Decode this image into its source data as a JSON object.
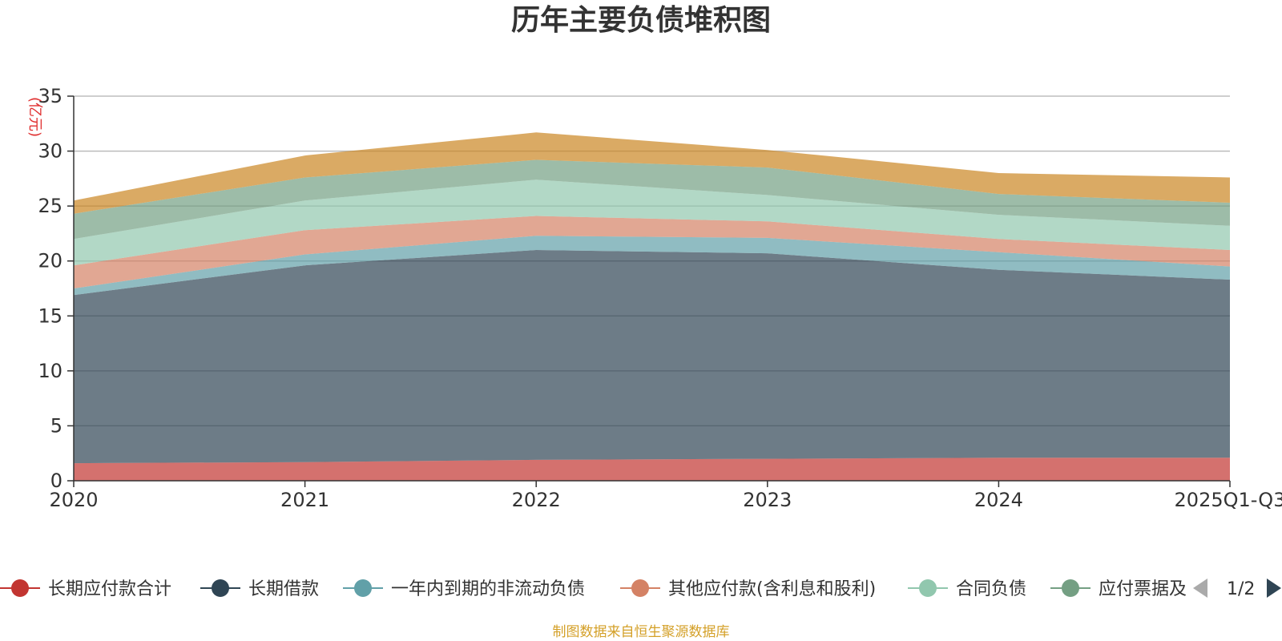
{
  "chart_data": {
    "type": "area",
    "stacked": true,
    "title": "历年主要负债堆积图",
    "ylabel": "(亿元)",
    "xlabel": "",
    "categories": [
      "2020",
      "2021",
      "2022",
      "2023",
      "2024",
      "2025Q1-Q3"
    ],
    "ylim": [
      0,
      35
    ],
    "yticks": [
      0,
      5,
      10,
      15,
      20,
      25,
      30,
      35
    ],
    "grid": true,
    "series": [
      {
        "name": "长期应付款合计",
        "color": "#c23531",
        "values": [
          1.6,
          1.7,
          1.9,
          2.0,
          2.1,
          2.1
        ]
      },
      {
        "name": "长期借款",
        "color": "#2f4554",
        "values": [
          15.3,
          17.9,
          19.1,
          18.7,
          17.1,
          16.2
        ]
      },
      {
        "name": "一年内到期的非流动负债",
        "color": "#61a0a8",
        "values": [
          0.6,
          1.0,
          1.3,
          1.4,
          1.6,
          1.2
        ]
      },
      {
        "name": "其他应付款(含利息和股利)",
        "color": "#d48265",
        "values": [
          2.1,
          2.2,
          1.8,
          1.5,
          1.2,
          1.5
        ]
      },
      {
        "name": "合同负债",
        "color": "#91c7ae",
        "values": [
          2.4,
          2.7,
          3.3,
          2.4,
          2.2,
          2.2
        ]
      },
      {
        "name": "应付票据及应付账款",
        "color": "#749f83",
        "values": [
          2.3,
          2.1,
          1.8,
          2.5,
          1.9,
          2.1
        ]
      },
      {
        "name": "",
        "color": "#ca8622",
        "values": [
          1.2,
          2.0,
          2.5,
          1.6,
          1.9,
          2.3
        ]
      }
    ],
    "legend": {
      "position": "bottom",
      "items": [
        "长期应付款合计",
        "长期借款",
        "一年内到期的非流动负债",
        "其他应付款(含利息和股利)",
        "合同负债",
        "应付票据及"
      ],
      "page": "1/2"
    }
  },
  "footer": {
    "source": "制图数据来自恒生聚源数据库"
  }
}
